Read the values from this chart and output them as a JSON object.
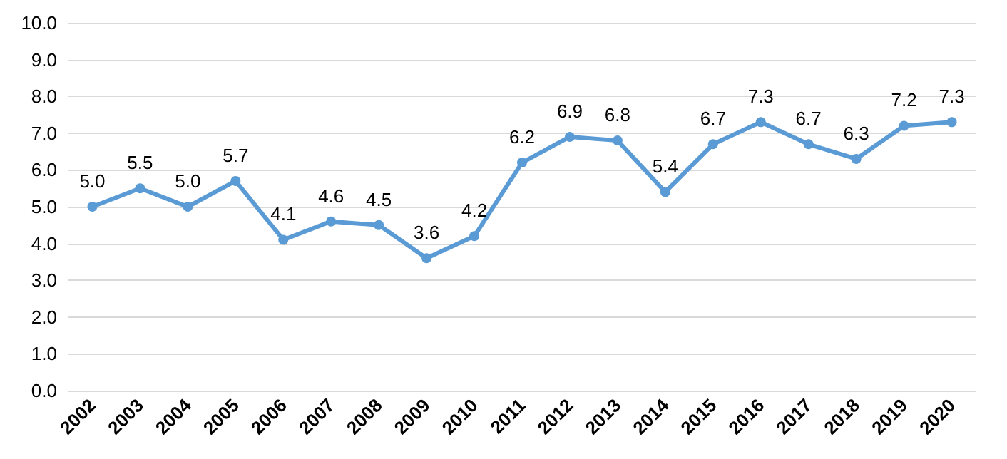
{
  "chart_data": {
    "type": "line",
    "categories": [
      "2002",
      "2003",
      "2004",
      "2005",
      "2006",
      "2007",
      "2008",
      "2009",
      "2010",
      "2011",
      "2012",
      "2013",
      "2014",
      "2015",
      "2016",
      "2017",
      "2018",
      "2019",
      "2020"
    ],
    "series": [
      {
        "color": "#5b9bd5",
        "values": [
          5.0,
          5.5,
          5.0,
          5.7,
          4.1,
          4.6,
          4.5,
          3.6,
          4.2,
          6.2,
          6.9,
          6.8,
          5.4,
          6.7,
          7.3,
          6.7,
          6.3,
          7.2,
          7.3
        ],
        "value_labels": [
          "5.0",
          "5.5",
          "5.0",
          "5.7",
          "4.1",
          "4.6",
          "4.5",
          "3.6",
          "4.2",
          "6.2",
          "6.9",
          "6.8",
          "5.4",
          "6.7",
          "7.3",
          "6.7",
          "6.3",
          "7.2",
          "7.3"
        ]
      }
    ],
    "ylim": [
      0,
      10
    ],
    "yticks": [
      {
        "value": 0,
        "label": "0.0"
      },
      {
        "value": 1,
        "label": "1.0"
      },
      {
        "value": 2,
        "label": "2.0"
      },
      {
        "value": 3,
        "label": "3.0"
      },
      {
        "value": 4,
        "label": "4.0"
      },
      {
        "value": 5,
        "label": "5.0"
      },
      {
        "value": 6,
        "label": "6.0"
      },
      {
        "value": 7,
        "label": "7.0"
      },
      {
        "value": 8,
        "label": "8.0"
      },
      {
        "value": 9,
        "label": "9.0"
      },
      {
        "value": 10,
        "label": "10.0"
      }
    ],
    "grid": "y",
    "marker": "circle",
    "line_style": "solid"
  }
}
